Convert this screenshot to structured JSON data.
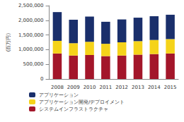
{
  "chart_data": {
    "type": "bar",
    "stacked": true,
    "grid": false,
    "legend": "bottom-left",
    "y_label": "(百万円)",
    "categories": [
      "2008",
      "2009",
      "2010",
      "2011",
      "2012",
      "2013",
      "2014",
      "2015"
    ],
    "series": [
      {
        "name": "システムインフラストラクチャ",
        "color": "#a3162a",
        "values": [
          870000,
          800000,
          820000,
          780000,
          800000,
          830000,
          850000,
          870000
        ]
      },
      {
        "name": "アプリケーション開発/デプロイメント",
        "color": "#f5d31a",
        "values": [
          430000,
          420000,
          450000,
          420000,
          450000,
          460000,
          480000,
          490000
        ]
      },
      {
        "name": "アプリケーション",
        "color": "#1a2f6b",
        "values": [
          980000,
          800000,
          860000,
          750000,
          780000,
          800000,
          810000,
          830000
        ]
      }
    ],
    "ylim": [
      0,
      2500000
    ],
    "yticks": [
      0,
      {
        "value": 500000,
        "label": "500,000"
      },
      {
        "value": 1000000,
        "label": "1,000,000"
      },
      {
        "value": 1500000,
        "label": "1,500,000"
      },
      {
        "value": 2000000,
        "label": "2,000,000"
      },
      {
        "value": 2500000,
        "label": "2,500,000"
      }
    ]
  }
}
